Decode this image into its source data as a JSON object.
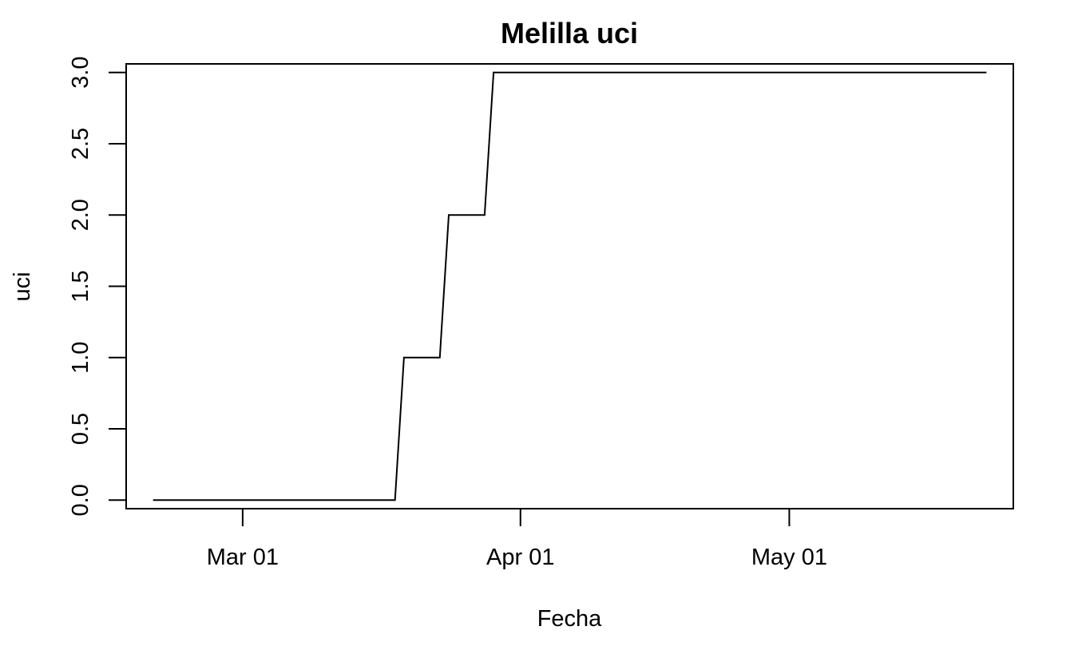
{
  "chart_data": {
    "type": "line",
    "title": "Melilla uci",
    "xlabel": "Fecha",
    "ylabel": "uci",
    "x_ticks": [
      "2020-03-01",
      "2020-04-01",
      "2020-05-01"
    ],
    "x_tick_labels": [
      "Mar 01",
      "Apr 01",
      "May 01"
    ],
    "y_ticks": [
      0.0,
      0.5,
      1.0,
      1.5,
      2.0,
      2.5,
      3.0
    ],
    "y_tick_labels": [
      "0.0",
      "0.5",
      "1.0",
      "1.5",
      "2.0",
      "2.5",
      "3.0"
    ],
    "xlim": [
      "2020-02-17",
      "2020-05-26"
    ],
    "ylim": [
      -0.06,
      3.06
    ],
    "grid": false,
    "series": [
      {
        "color": "#000000",
        "x": [
          "2020-02-20",
          "2020-03-18",
          "2020-03-19",
          "2020-03-23",
          "2020-03-24",
          "2020-03-28",
          "2020-03-29",
          "2020-05-23"
        ],
        "values": [
          0,
          0,
          1,
          1,
          2,
          2,
          3,
          3
        ]
      }
    ]
  }
}
